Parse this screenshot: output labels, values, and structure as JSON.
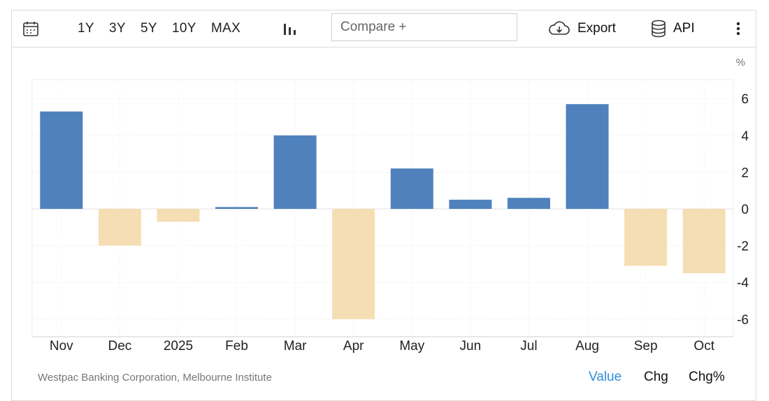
{
  "toolbar": {
    "ranges": [
      "1Y",
      "3Y",
      "5Y",
      "10Y",
      "MAX"
    ],
    "compare_placeholder": "Compare +",
    "export_label": "Export",
    "api_label": "API"
  },
  "colors": {
    "positive": "#4f81bd",
    "negative": "#f5deb3",
    "active_tab": "#2f8fdd"
  },
  "footer": {
    "source": "Westpac Banking Corporation, Melbourne Institute",
    "tabs": [
      "Value",
      "Chg",
      "Chg%"
    ],
    "active_tab": "Value"
  },
  "chart_data": {
    "type": "bar",
    "categories": [
      "Nov",
      "Dec",
      "2025",
      "Feb",
      "Mar",
      "Apr",
      "May",
      "Jun",
      "Jul",
      "Aug",
      "Sep",
      "Oct"
    ],
    "values": [
      5.3,
      -2.0,
      -0.7,
      0.1,
      4.0,
      -6.0,
      2.2,
      0.5,
      0.6,
      5.7,
      -3.1,
      -3.5
    ],
    "unit": "%",
    "yticks": [
      6,
      4,
      2,
      0,
      -2,
      -4,
      -6
    ],
    "ylim": [
      -7,
      7
    ],
    "axis_position": "right",
    "grid": true
  }
}
